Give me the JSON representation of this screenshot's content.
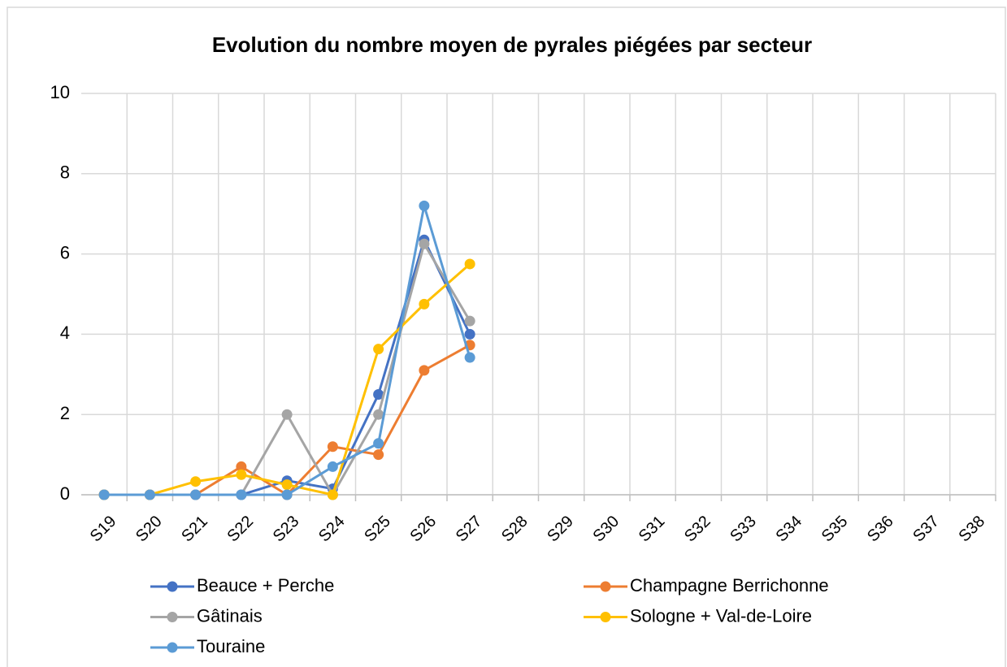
{
  "chart_data": {
    "type": "line",
    "title": "Evolution du nombre moyen de pyrales piégées par secteur",
    "categories": [
      "S19",
      "S20",
      "S21",
      "S22",
      "S23",
      "S24",
      "S25",
      "S26",
      "S27",
      "S28",
      "S29",
      "S30",
      "S31",
      "S32",
      "S33",
      "S34",
      "S35",
      "S36",
      "S37",
      "S38"
    ],
    "series": [
      {
        "name": "Beauce + Perche",
        "color": "#4472c4",
        "values": [
          0,
          0,
          0,
          0,
          0.35,
          0.15,
          2.5,
          6.35,
          4.0,
          null,
          null,
          null,
          null,
          null,
          null,
          null,
          null,
          null,
          null,
          null
        ]
      },
      {
        "name": "Champagne Berrichonne",
        "color": "#ed7d31",
        "values": [
          0,
          0,
          0,
          0.7,
          0,
          1.2,
          1.0,
          3.1,
          3.73,
          null,
          null,
          null,
          null,
          null,
          null,
          null,
          null,
          null,
          null,
          null
        ]
      },
      {
        "name": "Gâtinais",
        "color": "#a5a5a5",
        "values": [
          0,
          0,
          0,
          0,
          2.0,
          0,
          2.0,
          6.25,
          4.33,
          null,
          null,
          null,
          null,
          null,
          null,
          null,
          null,
          null,
          null,
          null
        ]
      },
      {
        "name": "Sologne + Val-de-Loire",
        "color": "#ffc000",
        "values": [
          0,
          0,
          0.33,
          0.5,
          0.25,
          0,
          3.63,
          4.75,
          5.75,
          null,
          null,
          null,
          null,
          null,
          null,
          null,
          null,
          null,
          null,
          null
        ]
      },
      {
        "name": "Touraine",
        "color": "#5b9bd5",
        "values": [
          0,
          0,
          0,
          0,
          0,
          0.7,
          1.28,
          7.2,
          3.42,
          null,
          null,
          null,
          null,
          null,
          null,
          null,
          null,
          null,
          null,
          null
        ]
      }
    ],
    "ylim": [
      0,
      10
    ],
    "yticks": [
      0,
      2,
      4,
      6,
      8,
      10
    ],
    "grid": true,
    "legend": "bottom"
  }
}
